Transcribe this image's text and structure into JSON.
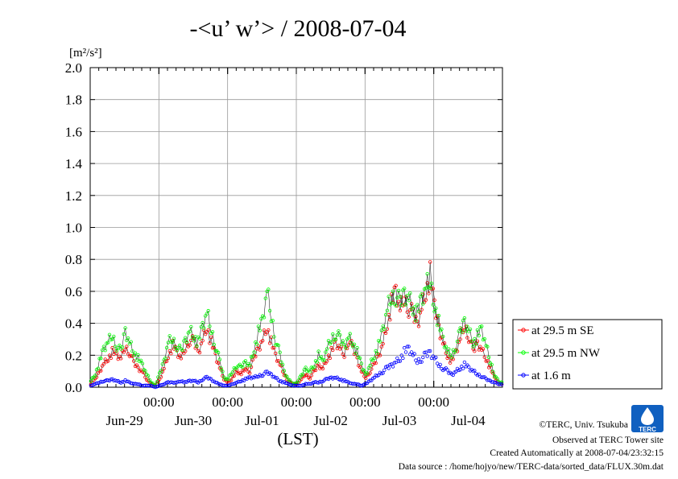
{
  "chart_data": {
    "type": "line",
    "title": "-<u’ w’> / 2008-07-04",
    "ylabel": "[m²/s²]",
    "xlabel": "(LST)",
    "ylim": [
      0,
      2.0
    ],
    "yticks": [
      "0.0",
      "0.2",
      "0.4",
      "0.6",
      "0.8",
      "1.0",
      "1.2",
      "1.4",
      "1.6",
      "1.8",
      "2.0"
    ],
    "x_time_ticks": [
      "00:00",
      "00:00",
      "00:00",
      "00:00",
      "00:00"
    ],
    "x_date_ticks": [
      "Jun-29",
      "Jun-30",
      "Jul-01",
      "Jul-02",
      "Jul-03",
      "Jul-04"
    ],
    "grid": true,
    "legend_position": "right",
    "series": [
      {
        "name": "at 29.5 m SE",
        "color": "#ff0000",
        "marker": "circle"
      },
      {
        "name": "at 29.5 m NW",
        "color": "#00ff00",
        "marker": "circle"
      },
      {
        "name": "at 1.6 m",
        "color": "#0000ff",
        "marker": "circle"
      }
    ],
    "days": [
      {
        "label": "Jun-29",
        "se": [
          0.02,
          0.05,
          0.1,
          0.15,
          0.18,
          0.22,
          0.2,
          0.18,
          0.25,
          0.22,
          0.15,
          0.12,
          0.1,
          0.05,
          0.02,
          0.01
        ],
        "nw": [
          0.04,
          0.08,
          0.16,
          0.24,
          0.28,
          0.32,
          0.26,
          0.22,
          0.36,
          0.28,
          0.22,
          0.18,
          0.14,
          0.08,
          0.03,
          0.01
        ],
        "low": [
          0.01,
          0.02,
          0.03,
          0.04,
          0.04,
          0.05,
          0.04,
          0.03,
          0.04,
          0.03,
          0.02,
          0.02,
          0.01,
          0.01,
          0.01,
          0.0
        ]
      },
      {
        "label": "Jun-30",
        "se": [
          0.05,
          0.12,
          0.2,
          0.26,
          0.22,
          0.18,
          0.24,
          0.3,
          0.28,
          0.22,
          0.3,
          0.38,
          0.28,
          0.2,
          0.12,
          0.05
        ],
        "nw": [
          0.08,
          0.16,
          0.28,
          0.3,
          0.26,
          0.22,
          0.3,
          0.36,
          0.32,
          0.28,
          0.38,
          0.46,
          0.36,
          0.26,
          0.16,
          0.06
        ],
        "low": [
          0.01,
          0.02,
          0.03,
          0.03,
          0.03,
          0.04,
          0.03,
          0.04,
          0.04,
          0.03,
          0.05,
          0.06,
          0.05,
          0.03,
          0.02,
          0.01
        ]
      },
      {
        "label": "Jul-01",
        "se": [
          0.03,
          0.06,
          0.1,
          0.08,
          0.12,
          0.1,
          0.18,
          0.25,
          0.3,
          0.38,
          0.28,
          0.2,
          0.14,
          0.08,
          0.04,
          0.02
        ],
        "nw": [
          0.05,
          0.1,
          0.14,
          0.12,
          0.16,
          0.14,
          0.24,
          0.34,
          0.42,
          0.6,
          0.44,
          0.3,
          0.2,
          0.1,
          0.05,
          0.02
        ],
        "low": [
          0.01,
          0.02,
          0.03,
          0.04,
          0.05,
          0.06,
          0.06,
          0.07,
          0.08,
          0.09,
          0.08,
          0.06,
          0.04,
          0.03,
          0.02,
          0.01
        ]
      },
      {
        "label": "Jul-02",
        "se": [
          0.02,
          0.05,
          0.08,
          0.06,
          0.1,
          0.14,
          0.12,
          0.18,
          0.22,
          0.28,
          0.24,
          0.2,
          0.3,
          0.24,
          0.18,
          0.1
        ],
        "nw": [
          0.03,
          0.07,
          0.12,
          0.1,
          0.14,
          0.2,
          0.16,
          0.24,
          0.3,
          0.34,
          0.3,
          0.26,
          0.32,
          0.28,
          0.22,
          0.14
        ],
        "low": [
          0.01,
          0.01,
          0.02,
          0.02,
          0.03,
          0.03,
          0.04,
          0.05,
          0.06,
          0.06,
          0.05,
          0.04,
          0.03,
          0.02,
          0.02,
          0.01
        ]
      },
      {
        "label": "Jul-03",
        "se": [
          0.06,
          0.1,
          0.14,
          0.2,
          0.28,
          0.4,
          0.52,
          0.6,
          0.48,
          0.55,
          0.5,
          0.45,
          0.4,
          0.5,
          0.6,
          0.7
        ],
        "nw": [
          0.08,
          0.14,
          0.2,
          0.26,
          0.36,
          0.48,
          0.56,
          0.58,
          0.52,
          0.6,
          0.56,
          0.5,
          0.46,
          0.55,
          0.62,
          0.66
        ],
        "low": [
          0.02,
          0.04,
          0.06,
          0.08,
          0.1,
          0.12,
          0.14,
          0.16,
          0.18,
          0.22,
          0.24,
          0.2,
          0.16,
          0.18,
          0.2,
          0.22
        ]
      },
      {
        "label": "Jul-04",
        "se": [
          0.5,
          0.38,
          0.28,
          0.2,
          0.16,
          0.22,
          0.3,
          0.38,
          0.32,
          0.22,
          0.28,
          0.24,
          0.18,
          0.12,
          0.06,
          0.02
        ],
        "nw": [
          0.52,
          0.4,
          0.3,
          0.22,
          0.2,
          0.26,
          0.34,
          0.42,
          0.36,
          0.28,
          0.32,
          0.36,
          0.26,
          0.16,
          0.08,
          0.03
        ],
        "low": [
          0.18,
          0.14,
          0.12,
          0.1,
          0.08,
          0.1,
          0.12,
          0.14,
          0.12,
          0.1,
          0.08,
          0.07,
          0.05,
          0.04,
          0.03,
          0.02
        ]
      }
    ]
  },
  "legend": {
    "items": [
      "at 29.5 m SE",
      "at 29.5 m NW",
      "at 1.6 m"
    ]
  },
  "footer": {
    "copyright": "©TERC, Univ. Tsukuba",
    "observed": "Observed at TERC Tower site",
    "created": "Created Automatically at 2008-07-04/23:32:15",
    "source": "Data source : /home/hojyo/new/TERC-data/sorted_data/FLUX.30m.dat"
  },
  "logo": {
    "text": "TERC",
    "color": "#1060c0"
  }
}
